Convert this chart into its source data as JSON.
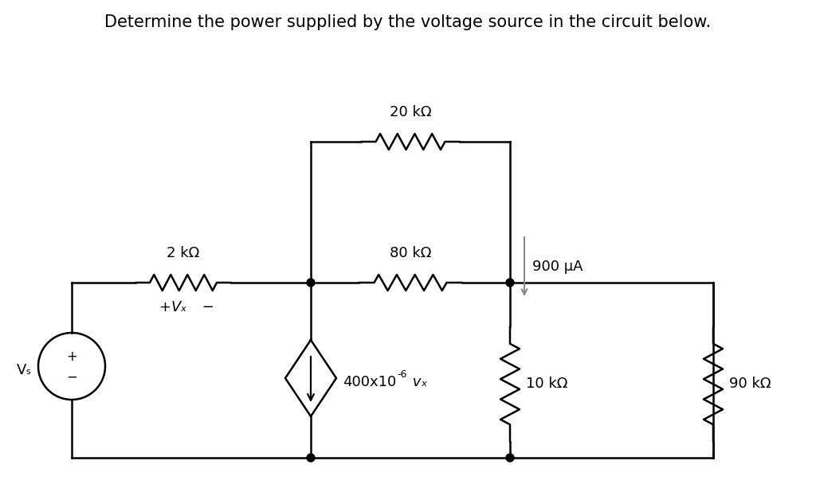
{
  "title": "Determine the power supplied by the voltage source in the circuit below.",
  "title_fontsize": 15,
  "bg_color": "#ffffff",
  "line_color": "#000000",
  "line_width": 1.8,
  "component_color": "#000000",
  "arrow_color": "#888888",
  "labels": {
    "resistor_20k": "20 kΩ",
    "resistor_2k": "2 kΩ",
    "resistor_80k": "80 kΩ",
    "resistor_10k": "10 kΩ",
    "resistor_90k": "90 kΩ",
    "current_source_prefix": "400x10",
    "current_source_exp": "-6",
    "current_source_suffix": " vₓ",
    "current_label": "900 μA",
    "vx_label_plus": "+",
    "vx_label_vx": "Vₓ",
    "vx_label_minus": "−",
    "vs_label": "Vₛ"
  }
}
